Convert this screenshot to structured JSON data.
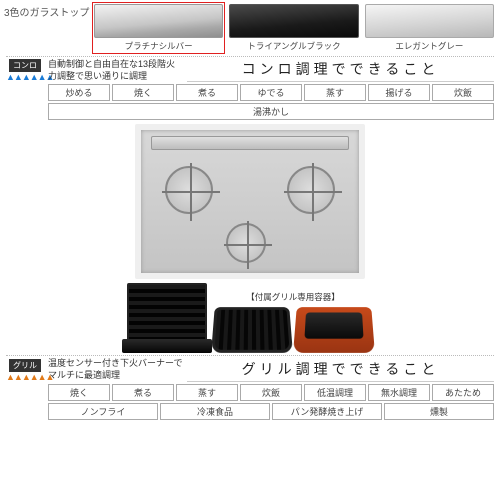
{
  "glass": {
    "label": "3色のガラストップ",
    "swatches": [
      {
        "label": "プラチナシルバー",
        "cls": "silver",
        "selected": true
      },
      {
        "label": "トライアングルブラック",
        "cls": "black",
        "selected": false
      },
      {
        "label": "エレガントグレー",
        "cls": "gray",
        "selected": false
      }
    ]
  },
  "burner_block": {
    "icon_label": "コンロ",
    "flames": "▲▲▲▲▲▲",
    "desc": "自動制御と自由自在な13段階火力調整で思い通りに調理",
    "title": "コンロ調理でできること",
    "chips": [
      "炒める",
      "焼く",
      "煮る",
      "ゆでる",
      "蒸す",
      "揚げる",
      "炊飯",
      "湯沸かし"
    ]
  },
  "accessory_label": "【付属グリル専用容器】",
  "grill_block": {
    "icon_label": "グリル",
    "flames": "▲▲▲▲▲▲",
    "desc": "温度センサー付き下火バーナーでマルチに最適調理",
    "title": "グリル調理でできること",
    "chips": [
      "焼く",
      "煮る",
      "蒸す",
      "炊飯",
      "低温調理",
      "無水調理",
      "あたため",
      "ノンフライ",
      "冷凍食品",
      "パン発酵焼き上げ",
      "燻製"
    ]
  },
  "colors": {
    "select_border": "#e02020",
    "flame_blue": "#1a7bd6",
    "flame_orange": "#e07a1a"
  }
}
